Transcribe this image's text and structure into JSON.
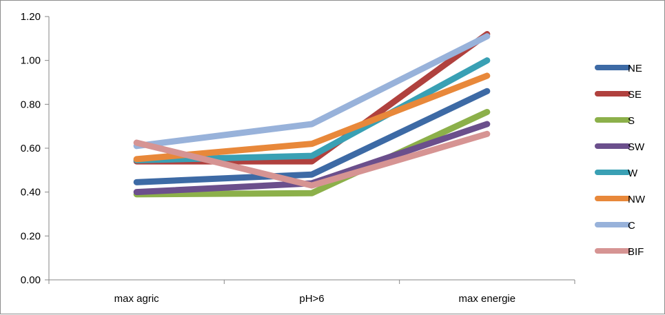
{
  "chart_data": {
    "type": "line",
    "title": "",
    "xlabel": "",
    "ylabel": "",
    "categories": [
      "max agric",
      "pH>6",
      "max energie"
    ],
    "ylim": [
      0,
      1.2
    ],
    "y_ticks": [
      0.0,
      0.2,
      0.4,
      0.6,
      0.8,
      1.0,
      1.2
    ],
    "y_tick_labels": [
      "0.00",
      "0.20",
      "0.40",
      "0.60",
      "0.80",
      "1.00",
      "1.20"
    ],
    "grid": false,
    "legend_position": "right",
    "series": [
      {
        "name": "NE",
        "color": "#3d6aa5",
        "values": [
          0.445,
          0.48,
          0.86
        ]
      },
      {
        "name": "SE",
        "color": "#b0413e",
        "values": [
          0.54,
          0.54,
          1.12
        ]
      },
      {
        "name": "S",
        "color": "#8cb04a",
        "values": [
          0.39,
          0.395,
          0.765
        ]
      },
      {
        "name": "SW",
        "color": "#6b4f8c",
        "values": [
          0.4,
          0.44,
          0.71
        ]
      },
      {
        "name": "W",
        "color": "#39a0b4",
        "values": [
          0.545,
          0.565,
          1.0
        ]
      },
      {
        "name": "NW",
        "color": "#e8883a",
        "values": [
          0.55,
          0.62,
          0.93
        ]
      },
      {
        "name": "C",
        "color": "#98b2da",
        "values": [
          0.61,
          0.71,
          1.11
        ]
      },
      {
        "name": "BIF",
        "color": "#d69493",
        "values": [
          0.625,
          0.43,
          0.665
        ]
      }
    ]
  }
}
